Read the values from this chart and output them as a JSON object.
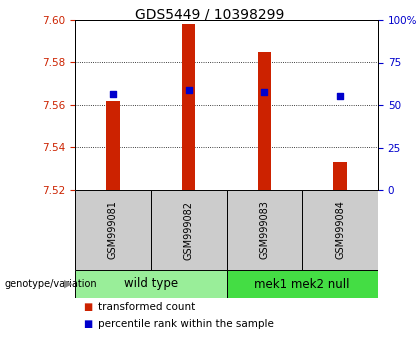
{
  "title": "GDS5449 / 10398299",
  "samples": [
    "GSM999081",
    "GSM999082",
    "GSM999083",
    "GSM999084"
  ],
  "bar_tops": [
    7.562,
    7.598,
    7.585,
    7.533
  ],
  "bar_bottom": 7.52,
  "percentile_values": [
    7.565,
    7.567,
    7.566,
    7.564
  ],
  "ylim_left": [
    7.52,
    7.6
  ],
  "ylim_right": [
    0,
    100
  ],
  "yticks_left": [
    7.52,
    7.54,
    7.56,
    7.58,
    7.6
  ],
  "yticks_right": [
    0,
    25,
    50,
    75,
    100
  ],
  "ytick_labels_right": [
    "0",
    "25",
    "50",
    "75",
    "100%"
  ],
  "bar_color": "#cc2200",
  "square_color": "#0000cc",
  "groups": [
    {
      "label": "wild type",
      "indices": [
        0,
        1
      ],
      "color": "#99ee99"
    },
    {
      "label": "mek1 mek2 null",
      "indices": [
        2,
        3
      ],
      "color": "#44dd44"
    }
  ],
  "sample_label_bg": "#cccccc",
  "legend_bar_label": "transformed count",
  "legend_sq_label": "percentile rank within the sample",
  "genotype_label": "genotype/variation",
  "title_fontsize": 10,
  "tick_fontsize": 7.5,
  "sample_fontsize": 7,
  "group_fontsize": 8.5,
  "legend_fontsize": 7.5,
  "background_color": "#ffffff",
  "left_tick_color": "#cc2200",
  "right_tick_color": "#0000cc",
  "bar_width": 0.18
}
